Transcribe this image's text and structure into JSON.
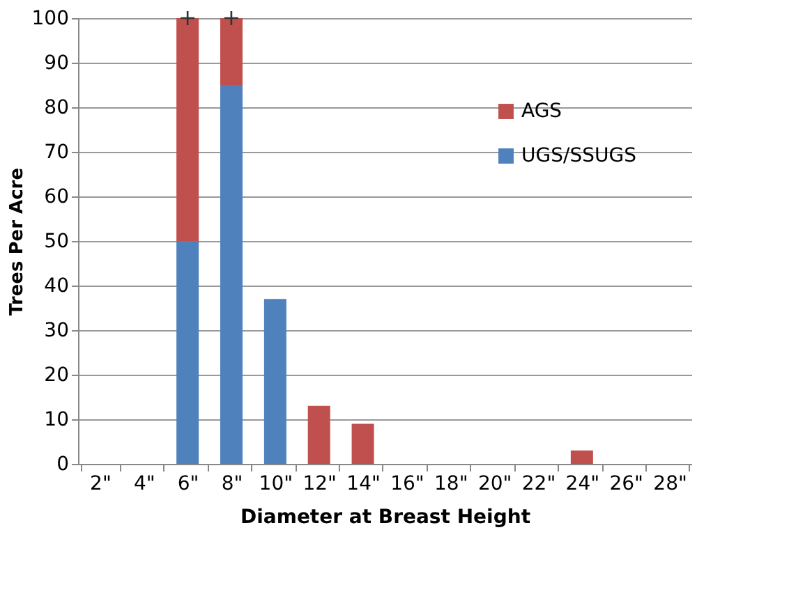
{
  "chart_data": {
    "type": "bar",
    "stacked": true,
    "xlabel": "Diameter at Breast Height",
    "ylabel": "Trees Per Acre",
    "categories": [
      "2\"",
      "4\"",
      "6\"",
      "8\"",
      "10\"",
      "12\"",
      "14\"",
      "16\"",
      "18\"",
      "20\"",
      "22\"",
      "24\"",
      "26\"",
      "28\""
    ],
    "series": [
      {
        "name": "UGS/SSUGS",
        "color": "#4f81bd",
        "values": [
          null,
          null,
          50,
          85,
          37,
          null,
          null,
          null,
          null,
          null,
          null,
          null,
          null,
          null
        ]
      },
      {
        "name": "AGS",
        "color": "#c0504d",
        "values": [
          null,
          null,
          50,
          15,
          null,
          13,
          9,
          null,
          null,
          null,
          null,
          3,
          null,
          null
        ]
      }
    ],
    "annotations": [
      {
        "text": "+",
        "x": "6\"",
        "y": 100
      },
      {
        "text": "+",
        "x": "8\"",
        "y": 100
      }
    ],
    "ylim": [
      0,
      100
    ],
    "yticks": [
      0,
      10,
      20,
      30,
      40,
      50,
      60,
      70,
      80,
      90,
      100
    ],
    "grid": "y",
    "legend": "top right"
  }
}
